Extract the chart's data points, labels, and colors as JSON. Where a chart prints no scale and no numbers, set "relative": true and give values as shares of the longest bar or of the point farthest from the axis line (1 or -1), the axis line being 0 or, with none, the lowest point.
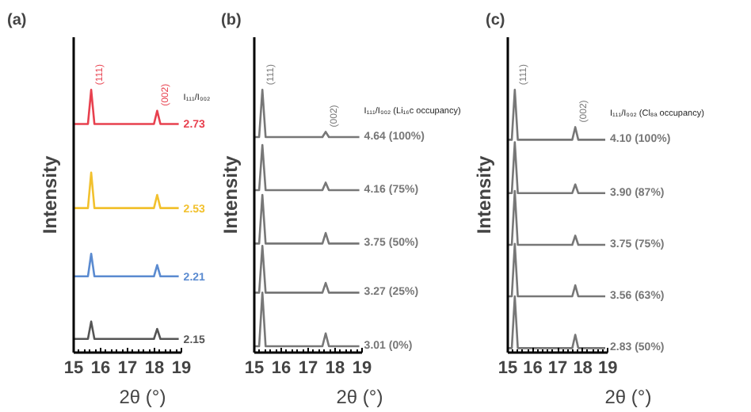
{
  "chart_data": [
    {
      "type": "line",
      "title": "(a)",
      "xlabel": "2θ (°)",
      "ylabel": "Intensity",
      "legend_title": "I₁₁₁/I₀₀₂",
      "relative": true,
      "grid": false,
      "legend": false,
      "marker": "none",
      "line_style": "solid",
      "xlim": [
        15,
        19
      ],
      "xticks": [
        15,
        16,
        17,
        18,
        19
      ],
      "x": [
        15.0,
        15.53,
        15.65,
        15.77,
        17.98,
        18.1,
        18.22,
        18.9
      ],
      "annotations": [
        {
          "text": "(111)",
          "x": 15.65,
          "y": 1.0
        },
        {
          "text": "(002)",
          "x": 18.1,
          "y": 0.92
        }
      ],
      "series": [
        {
          "name": "2.73",
          "color": "#e8414f",
          "values": [
            0.87,
            0.87,
            1.0,
            0.87,
            0.87,
            0.92,
            0.87,
            0.87
          ]
        },
        {
          "name": "2.53",
          "color": "#f2c12e",
          "values": [
            0.55,
            0.55,
            0.685,
            0.55,
            0.55,
            0.6,
            0.55,
            0.55
          ]
        },
        {
          "name": "2.21",
          "color": "#5b8bd0",
          "values": [
            0.29,
            0.29,
            0.376,
            0.29,
            0.29,
            0.333,
            0.29,
            0.29
          ]
        },
        {
          "name": "2.15",
          "color": "#555555",
          "values": [
            0.052,
            0.052,
            0.118,
            0.052,
            0.052,
            0.09,
            0.052,
            0.052
          ]
        }
      ]
    },
    {
      "type": "line",
      "title": "(b)",
      "xlabel": "2θ (°)",
      "ylabel": "Intensity",
      "legend_title": "I₁₁₁/I₀₀₂ (Li₁₆c occupancy)",
      "relative": true,
      "grid": false,
      "legend": false,
      "marker": "none",
      "line_style": "solid",
      "xlim": [
        15,
        19
      ],
      "xticks": [
        15,
        16,
        17,
        18,
        19
      ],
      "x": [
        15.0,
        15.18,
        15.3,
        15.42,
        17.53,
        17.65,
        17.77,
        18.9
      ],
      "annotations": [
        {
          "text": "(111)",
          "x": 15.3,
          "y": 1.0
        },
        {
          "text": "(002)",
          "x": 17.65,
          "y": 0.84
        }
      ],
      "series": [
        {
          "name": "4.64 (100%)",
          "color": "#777777",
          "values": [
            0.82,
            0.82,
            1.0,
            0.82,
            0.82,
            0.84,
            0.82,
            0.82
          ]
        },
        {
          "name": "4.16 (75%)",
          "color": "#777777",
          "values": [
            0.618,
            0.618,
            0.79,
            0.618,
            0.618,
            0.647,
            0.618,
            0.618
          ]
        },
        {
          "name": "3.75 (50%)",
          "color": "#777777",
          "values": [
            0.415,
            0.415,
            0.6,
            0.415,
            0.415,
            0.455,
            0.415,
            0.415
          ]
        },
        {
          "name": "3.27 (25%)",
          "color": "#777777",
          "values": [
            0.228,
            0.228,
            0.406,
            0.228,
            0.228,
            0.265,
            0.228,
            0.228
          ]
        },
        {
          "name": "3.01 (0%)",
          "color": "#777777",
          "values": [
            0.024,
            0.024,
            0.228,
            0.024,
            0.024,
            0.073,
            0.024,
            0.024
          ]
        }
      ]
    },
    {
      "type": "line",
      "title": "(c)",
      "xlabel": "2θ (°)",
      "ylabel": "Intensity",
      "legend_title": "I₁₁₁/I₀₀₂ (Cl₈ₐ occupancy)",
      "relative": true,
      "grid": false,
      "legend": false,
      "marker": "none",
      "line_style": "solid",
      "xlim": [
        15,
        19
      ],
      "xticks": [
        15,
        16,
        17,
        18,
        19
      ],
      "x": [
        15.0,
        15.16,
        15.28,
        15.4,
        17.58,
        17.7,
        17.82,
        18.9
      ],
      "annotations": [
        {
          "text": "(111)",
          "x": 15.28,
          "y": 1.0
        },
        {
          "text": "(002)",
          "x": 17.7,
          "y": 0.858
        }
      ],
      "series": [
        {
          "name": "4.10 (100%)",
          "color": "#777777",
          "values": [
            0.81,
            0.81,
            1.0,
            0.81,
            0.81,
            0.858,
            0.81,
            0.81
          ]
        },
        {
          "name": "3.90 (87%)",
          "color": "#777777",
          "values": [
            0.607,
            0.607,
            0.8,
            0.607,
            0.607,
            0.64,
            0.607,
            0.607
          ]
        },
        {
          "name": "3.75 (75%)",
          "color": "#777777",
          "values": [
            0.41,
            0.41,
            0.615,
            0.41,
            0.41,
            0.445,
            0.41,
            0.41
          ]
        },
        {
          "name": "3.56 (63%)",
          "color": "#777777",
          "values": [
            0.214,
            0.214,
            0.414,
            0.214,
            0.214,
            0.256,
            0.214,
            0.214
          ]
        },
        {
          "name": "2.83 (50%)",
          "color": "#777777",
          "values": [
            0.017,
            0.017,
            0.214,
            0.017,
            0.017,
            0.068,
            0.017,
            0.017
          ]
        }
      ]
    }
  ]
}
